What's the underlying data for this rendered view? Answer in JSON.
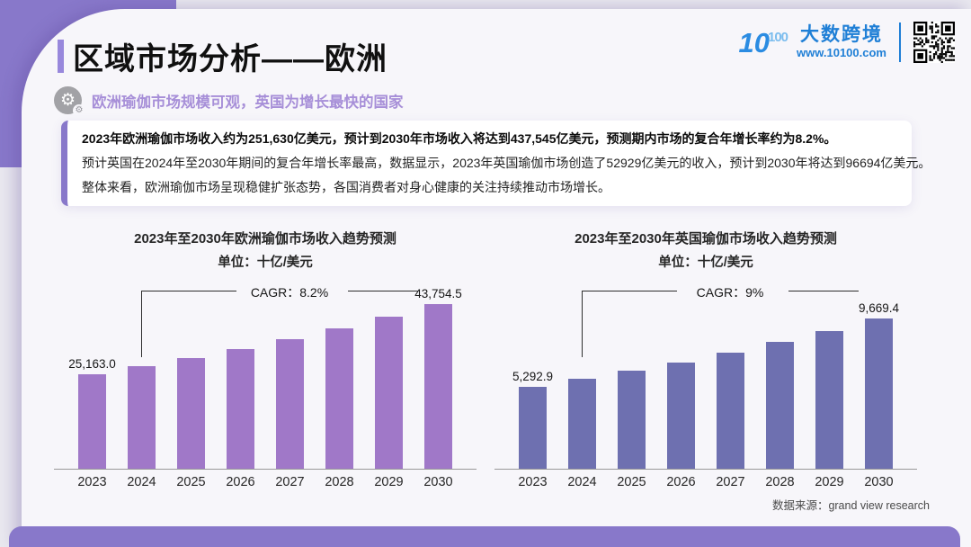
{
  "page": {
    "title": "区域市场分析——欧洲",
    "subtitle": "欧洲瑜伽市场规模可观，英国为增长最快的国家",
    "source_note": "数据来源：grand view research"
  },
  "brand": {
    "logo_mark_big": "10",
    "logo_mark_small": "100",
    "name": "大数跨境",
    "website": "www.10100.com",
    "brand_color": "#1f7fd6"
  },
  "summary": {
    "line1": "2023年欧洲瑜伽市场收入约为251,630亿美元，预计到2030年市场收入将达到437,545亿美元，预测期内市场的复合年增长率约为8.2%。",
    "line2": "预计英国在2024年至2030年期间的复合年增长率最高，数据显示，2023年英国瑜伽市场创造了52929亿美元的收入，预计到2030年将达到96694亿美元。",
    "line3": "整体来看，欧洲瑜伽市场呈现稳健扩张态势，各国消费者对身心健康的关注持续推动市场增长。"
  },
  "accent_color": "#8878ca",
  "chart_data": [
    {
      "type": "bar",
      "title": "2023年至2030年欧洲瑜伽市场收入趋势预测",
      "unit_label": "单位：十亿/美元",
      "cagr_label": "CAGR：8.2%",
      "categories": [
        "2023",
        "2024",
        "2025",
        "2026",
        "2027",
        "2028",
        "2029",
        "2030"
      ],
      "values": [
        25163.0,
        27226,
        29459,
        31874,
        34488,
        37316,
        40376,
        43754.5
      ],
      "value_labels": {
        "2023": "25,163.0",
        "2030": "43,754.5"
      },
      "bar_color": "#a078c8",
      "ylim": [
        0,
        43754.5
      ],
      "grid": false,
      "legend": "none",
      "note": "only first and last bars carry data labels; intermediate values estimated from 8.2% CAGR"
    },
    {
      "type": "bar",
      "title": "2023年至2030年英国瑜伽市场收入趋势预测",
      "unit_label": "单位：十亿/美元",
      "cagr_label": "CAGR：9%",
      "categories": [
        "2023",
        "2024",
        "2025",
        "2026",
        "2027",
        "2028",
        "2029",
        "2030"
      ],
      "values": [
        5292.9,
        5769,
        6288,
        6854,
        7471,
        8143,
        8876,
        9669.4
      ],
      "value_labels": {
        "2023": "5,292.9",
        "2030": "9,669.4"
      },
      "bar_color": "#6e70b0",
      "ylim": [
        0,
        9669.4
      ],
      "grid": false,
      "legend": "none",
      "note": "only first and last bars carry data labels; intermediate values estimated from 9% CAGR"
    }
  ]
}
